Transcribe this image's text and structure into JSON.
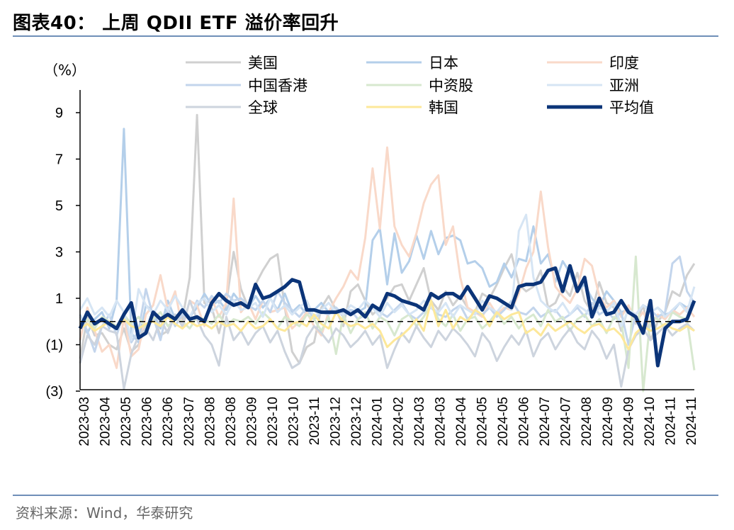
{
  "title": "图表40：  上周 QDII ETF 溢价率回升",
  "source": "资料来源：Wind，华泰研究",
  "chart_data": {
    "type": "line",
    "unit_label": "（%）",
    "ylim": [
      -3,
      10
    ],
    "yticks": [
      9,
      7,
      5,
      3,
      1,
      -1,
      -3
    ],
    "ytick_labels": [
      "9",
      "7",
      "5",
      "3",
      "1",
      "(1)",
      "(3)"
    ],
    "xtick_labels": [
      "2023-03",
      "2023-04",
      "2023-05",
      "2023-06",
      "2023-06",
      "2023-07",
      "2023-08",
      "2023-08",
      "2023-09",
      "2023-10",
      "2023-10",
      "2023-11",
      "2023-12",
      "2023-12",
      "2024-01",
      "2024-02",
      "2024-03",
      "2024-03",
      "2024-04",
      "2024-05",
      "2024-05",
      "2024-06",
      "2024-07",
      "2024-07",
      "2024-08",
      "2024-09",
      "2024-09",
      "2024-10",
      "2024-11",
      "2024-11"
    ],
    "zero_line": "dashed",
    "grid": false,
    "legend_position": "top",
    "series": [
      {
        "name": "美国",
        "color": "#d0d0d0",
        "width": 3,
        "values": [
          -1.6,
          0.2,
          -0.6,
          -0.5,
          -1.0,
          -1.2,
          -0.3,
          -1.3,
          -1.0,
          -0.2,
          0.2,
          -0.6,
          -0.4,
          0.3,
          0.1,
          1.9,
          8.9,
          0.8,
          0.6,
          -0.5,
          0.8,
          3.0,
          1.4,
          0.6,
          1.6,
          2.2,
          2.7,
          2.9,
          0.6,
          -1.3,
          -1.8,
          -1.1,
          -0.9,
          0.6,
          1.1,
          0.5,
          -0.2,
          1.3,
          1.6,
          0.9,
          0.3,
          0.6,
          1.0,
          1.5,
          1.6,
          0.9,
          1.6,
          2.3,
          0.9,
          0.5,
          1.3,
          0.7,
          1.1,
          0.6,
          0.4,
          1.2,
          1.0,
          1.6,
          2.3,
          2.9,
          1.6,
          1.3,
          1.5,
          2.2,
          0.6,
          0.8,
          1.5,
          1.1,
          2.1,
          0.9,
          0.4,
          1.7,
          0.8,
          0.6,
          -0.4,
          0.6,
          -0.1,
          0.7,
          -0.8,
          0.0,
          0.4,
          1.3,
          1.1,
          2.0,
          2.5
        ]
      },
      {
        "name": "日本",
        "color": "#b4cfea",
        "width": 3,
        "values": [
          0.3,
          -0.5,
          0.1,
          0.4,
          -0.3,
          0.9,
          8.3,
          -0.5,
          -0.9,
          0.7,
          0.4,
          -0.3,
          0.9,
          0.1,
          0.5,
          0.2,
          0.6,
          1.2,
          0.7,
          0.9,
          0.5,
          1.2,
          0.8,
          0.6,
          1.1,
          0.6,
          1.0,
          0.5,
          1.2,
          0.4,
          0.7,
          0.3,
          0.5,
          0.8,
          0.4,
          0.6,
          0.3,
          0.5,
          0.4,
          0.6,
          3.5,
          4.0,
          1.6,
          3.8,
          2.1,
          2.6,
          3.7,
          2.7,
          3.9,
          2.9,
          3.6,
          3.7,
          3.5,
          2.5,
          2.6,
          2.3,
          1.5,
          1.7,
          2.5,
          1.9,
          2.7,
          2.6,
          4.1,
          2.5,
          2.9,
          1.7,
          2.6,
          2.1,
          1.3,
          1.6,
          1.0,
          0.6,
          1.3,
          0.9,
          0.4,
          0.5,
          0.3,
          0.7,
          0.4,
          0.6,
          0.3,
          0.4,
          0.8,
          0.6,
          0.9
        ]
      },
      {
        "name": "印度",
        "color": "#f9d9c9",
        "width": 3,
        "values": [
          -0.8,
          0.6,
          -0.4,
          -1.3,
          -1.0,
          -2.0,
          0.2,
          -1.5,
          -1.2,
          0.3,
          0.7,
          2.0,
          0.5,
          1.3,
          -0.3,
          0.9,
          0.7,
          -0.2,
          1.0,
          0.2,
          0.8,
          5.3,
          0.4,
          0.8,
          0.1,
          0.9,
          0.4,
          0.5,
          0.6,
          -0.3,
          0.0,
          0.4,
          -0.2,
          -0.6,
          0.4,
          1.0,
          1.5,
          2.2,
          1.8,
          3.6,
          6.6,
          4.0,
          7.5,
          4.1,
          3.3,
          2.8,
          3.8,
          5.1,
          5.9,
          6.3,
          3.3,
          4.1,
          1.9,
          0.6,
          0.4,
          0.2,
          0.8,
          0.3,
          0.6,
          0.5,
          1.2,
          2.3,
          3.0,
          5.6,
          3.2,
          1.5,
          1.1,
          0.8,
          1.4,
          2.7,
          2.4,
          1.1,
          0.6,
          0.9,
          0.2,
          0.7,
          0.0,
          0.4,
          -0.2,
          0.3,
          0.1,
          0.5,
          0.3,
          0.6,
          0.2
        ]
      },
      {
        "name": "中国香港",
        "color": "#c3d5ec",
        "width": 3,
        "values": [
          0.2,
          -0.4,
          -1.3,
          -0.2,
          0.3,
          -0.6,
          0.4,
          -0.9,
          -0.4,
          1.4,
          0.2,
          -0.8,
          0.6,
          -0.2,
          0.3,
          0.1,
          0.9,
          0.6,
          1.1,
          0.8,
          1.2,
          0.9,
          1.0,
          0.7,
          0.5,
          0.9,
          0.4,
          1.3,
          0.8,
          0.5,
          0.2,
          0.6,
          0.1,
          0.4,
          0.3,
          0.6,
          0.2,
          0.5,
          0.1,
          0.3,
          0.6,
          0.4,
          0.2,
          0.5,
          0.8,
          0.3,
          0.1,
          0.4,
          0.6,
          0.3,
          0.2,
          0.5,
          0.7,
          0.1,
          0.4,
          0.3,
          0.6,
          0.2,
          0.5,
          0.9,
          0.4,
          0.3,
          0.6,
          0.2,
          0.4,
          0.5,
          0.1,
          0.3,
          0.6,
          0.2,
          0.8,
          0.3,
          0.5,
          0.1,
          0.4,
          -1.0,
          0.3,
          0.7,
          0.5,
          0.2,
          0.4,
          2.5,
          2.8,
          1.3,
          0.8
        ]
      },
      {
        "name": "中资股",
        "color": "#d7e8cf",
        "width": 3,
        "values": [
          -0.2,
          0.1,
          -0.3,
          0.2,
          0.0,
          -0.2,
          0.3,
          -0.1,
          0.2,
          -0.3,
          0.1,
          0.4,
          -0.2,
          0.1,
          0.0,
          -0.3,
          0.2,
          0.1,
          -0.1,
          0.3,
          -0.2,
          0.1,
          0.0,
          0.2,
          -0.1,
          0.4,
          0.1,
          -0.3,
          0.2,
          0.0,
          -0.2,
          0.3,
          0.1,
          -0.4,
          0.2,
          -1.4,
          0.3,
          -0.5,
          0.1,
          0.4,
          -0.3,
          0.2,
          0.0,
          -0.6,
          0.1,
          0.3,
          -0.2,
          0.2,
          0.8,
          0.1,
          -0.2,
          0.3,
          -0.4,
          0.1,
          0.2,
          -0.3,
          0.0,
          0.4,
          -0.1,
          0.2,
          -0.3,
          0.1,
          0.3,
          -0.2,
          0.5,
          0.0,
          0.2,
          -0.4,
          0.1,
          0.3,
          -0.2,
          0.1,
          -0.5,
          0.2,
          0.0,
          -2.0,
          2.8,
          -3.0,
          0.2,
          0.1,
          -0.3,
          0.4,
          0.2,
          0.1,
          -2.1
        ]
      },
      {
        "name": "亚洲",
        "color": "#d6e5f4",
        "width": 3,
        "values": [
          0.5,
          1.0,
          0.3,
          0.6,
          0.2,
          0.9,
          0.4,
          -0.8,
          1.4,
          0.7,
          0.3,
          0.9,
          0.5,
          1.1,
          0.6,
          0.2,
          0.8,
          1.0,
          0.4,
          0.7,
          0.3,
          0.9,
          0.5,
          0.6,
          0.8,
          0.2,
          1.0,
          0.4,
          0.7,
          0.3,
          0.6,
          0.9,
          0.2,
          0.5,
          0.8,
          0.4,
          0.3,
          0.7,
          0.5,
          0.9,
          0.6,
          0.2,
          0.8,
          0.4,
          0.7,
          0.3,
          0.5,
          0.9,
          0.6,
          0.4,
          0.8,
          0.2,
          0.7,
          0.5,
          0.3,
          0.9,
          0.6,
          0.4,
          0.8,
          0.5,
          3.9,
          4.6,
          1.9,
          0.9,
          0.6,
          0.4,
          0.8,
          0.3,
          0.7,
          0.5,
          0.2,
          0.6,
          0.4,
          0.8,
          -0.2,
          0.5,
          0.3,
          0.7,
          0.4,
          0.6,
          0.2,
          0.5,
          0.8,
          0.4,
          1.5
        ]
      },
      {
        "name": "全球",
        "color": "#cdd4de",
        "width": 3,
        "values": [
          -1.8,
          -0.6,
          -1.0,
          -0.2,
          -0.4,
          -0.5,
          -2.9,
          -1.4,
          -0.6,
          -0.3,
          -0.8,
          0.1,
          -0.5,
          0.3,
          -0.2,
          0.9,
          0.1,
          -0.6,
          -1.0,
          -1.9,
          0.2,
          -0.8,
          -0.4,
          -1.0,
          -0.5,
          -0.2,
          -0.9,
          -0.4,
          -1.3,
          -2.0,
          -1.8,
          -0.7,
          -0.2,
          -0.5,
          -0.9,
          -0.3,
          -0.6,
          -1.1,
          -0.8,
          -0.4,
          -1.0,
          -0.6,
          -2.0,
          -1.2,
          -0.5,
          -0.9,
          -0.2,
          -0.7,
          -1.1,
          -0.4,
          -0.8,
          -0.3,
          -0.6,
          -1.0,
          -1.5,
          -0.5,
          -0.9,
          -1.7,
          -1.1,
          -0.6,
          -1.0,
          -0.4,
          -1.5,
          -0.8,
          -0.5,
          -1.2,
          -0.7,
          -0.3,
          -0.9,
          -1.2,
          -0.4,
          -0.8,
          -1.6,
          -1.0,
          -2.8,
          -1.2,
          -0.6,
          -0.3,
          -0.8,
          -0.5,
          -0.2,
          -0.6,
          -0.3,
          -0.1,
          -0.4
        ]
      },
      {
        "name": "韩国",
        "color": "#fde89a",
        "width": 3,
        "values": [
          -0.3,
          -0.1,
          -0.4,
          -0.2,
          0.0,
          -0.3,
          0.1,
          -0.2,
          -0.3,
          -0.1,
          0.0,
          -0.2,
          0.2,
          -0.1,
          -0.3,
          0.0,
          -0.2,
          -0.1,
          -0.3,
          0.0,
          -0.2,
          -0.1,
          -0.4,
          0.0,
          -0.3,
          -0.2,
          0.1,
          -0.3,
          -0.4,
          -0.1,
          0.0,
          -0.2,
          0.3,
          -0.1,
          -0.3,
          0.4,
          0.0,
          -0.2,
          -0.1,
          -0.3,
          -0.1,
          -0.4,
          -1.1,
          -0.8,
          -0.6,
          -0.3,
          0.1,
          -0.4,
          0.9,
          -0.2,
          0.5,
          -0.3,
          0.2,
          0.0,
          0.5,
          0.3,
          -0.2,
          0.4,
          0.1,
          0.3,
          0.4,
          -0.5,
          -0.3,
          -0.6,
          -0.1,
          -0.4,
          -0.2,
          0.0,
          -0.3,
          -0.5,
          -0.2,
          -0.1,
          -0.4,
          -0.3,
          -0.6,
          -1.2,
          -0.5,
          -0.2,
          -0.4,
          -0.3,
          -0.1,
          -0.3,
          -0.4,
          -0.2,
          -0.4
        ]
      },
      {
        "name": "平均值",
        "color": "#0b3478",
        "width": 5,
        "values": [
          -0.3,
          0.4,
          -0.1,
          0.1,
          -0.1,
          -0.3,
          0.3,
          0.8,
          -0.7,
          -0.5,
          0.4,
          0.1,
          0.3,
          0.1,
          0.5,
          0.1,
          0.2,
          0.0,
          0.8,
          1.2,
          0.9,
          0.7,
          0.8,
          0.6,
          1.6,
          1.0,
          1.1,
          1.3,
          1.5,
          1.8,
          1.7,
          0.5,
          0.5,
          0.4,
          0.4,
          0.4,
          0.5,
          0.3,
          0.5,
          0.2,
          0.7,
          0.5,
          1.2,
          1.1,
          0.9,
          0.8,
          0.7,
          0.5,
          1.2,
          1.0,
          1.2,
          1.2,
          1.0,
          1.5,
          1.0,
          0.5,
          1.1,
          1.0,
          0.8,
          0.6,
          1.5,
          1.6,
          1.6,
          1.7,
          2.2,
          2.3,
          1.3,
          2.4,
          1.3,
          1.9,
          0.2,
          1.0,
          0.3,
          0.4,
          0.9,
          0.4,
          0.2,
          -0.5,
          0.9,
          -1.9,
          -0.3,
          0.0,
          0.0,
          0.1,
          0.9
        ]
      }
    ]
  }
}
